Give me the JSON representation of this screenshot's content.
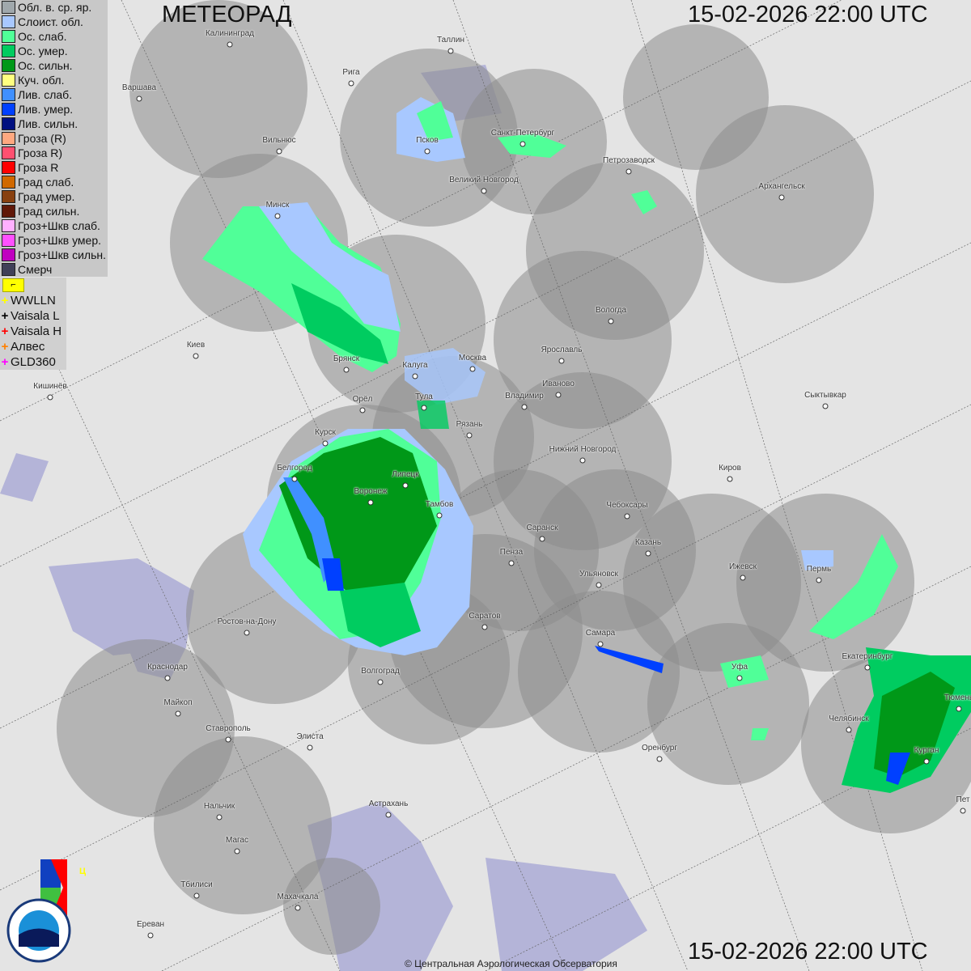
{
  "title": "МЕТЕОРАД",
  "timestamp": "15-02-2026  22:00 UTC",
  "copyright": "© Центральная Аэрологическая Обсерватория",
  "legend": [
    {
      "label": "Обл. в. ср. яр.",
      "color": "#a0a8ac"
    },
    {
      "label": "Слоист. обл.",
      "color": "#a8c8ff"
    },
    {
      "label": "Ос. слаб.",
      "color": "#50ff98"
    },
    {
      "label": "Ос. умер.",
      "color": "#00cc60"
    },
    {
      "label": "Ос. сильн.",
      "color": "#009818"
    },
    {
      "label": "Куч. обл.",
      "color": "#ffff80"
    },
    {
      "label": "Лив. слаб.",
      "color": "#4090ff"
    },
    {
      "label": "Лив. умер.",
      "color": "#0040ff"
    },
    {
      "label": "Лив. сильн.",
      "color": "#001080"
    },
    {
      "label": "Гроза (R)",
      "color": "#ffa880"
    },
    {
      "label": "Гроза R)",
      "color": "#ff5070"
    },
    {
      "label": "Гроза R",
      "color": "#ff0000"
    },
    {
      "label": "Град слаб.",
      "color": "#d06800"
    },
    {
      "label": "Град умер.",
      "color": "#884010"
    },
    {
      "label": "Град сильн.",
      "color": "#601808"
    },
    {
      "label": "Гроз+Шкв слаб.",
      "color": "#ffb0ff"
    },
    {
      "label": "Гроз+Шкв умер.",
      "color": "#ff50ff"
    },
    {
      "label": "Гроз+Шкв сильн.",
      "color": "#c000c0"
    },
    {
      "label": "Смерч",
      "color": "#404058"
    }
  ],
  "lightning_flag_icon": "flag-icon",
  "lightning": [
    {
      "label": "WWLLN",
      "color": "#ffff00"
    },
    {
      "label": "Vaisala L",
      "color": "#000000"
    },
    {
      "label": "Vaisala H",
      "color": "#ff0000"
    },
    {
      "label": "Алвес",
      "color": "#ff8000"
    },
    {
      "label": "GLD360",
      "color": "#ff00ff"
    }
  ],
  "logos": {
    "cao": "ЦАО 1941",
    "roshydromet": "РОСГИДРОМЕТ ROSHYDROMET"
  },
  "cities": [
    "Калининград",
    "Таллин",
    "Рига",
    "Варшава",
    "Псков",
    "Санкт-Петербург",
    "Петрозаводск",
    "Архангельск",
    "Вильнюс",
    "Великий Новгород",
    "Минск",
    "Вологда",
    "Ярославль",
    "Иваново",
    "Москва",
    "Калуга",
    "Брянск",
    "Киев",
    "Кишинёв",
    "Тула",
    "Владимир",
    "Орёл",
    "Рязань",
    "Сыктывкар",
    "Нижний Новгород",
    "Курск",
    "Киров",
    "Белгород",
    "Липецк",
    "Воронеж",
    "Тамбов",
    "Чебоксары",
    "Саранск",
    "Казань",
    "Пенза",
    "Ижевск",
    "Пермь",
    "Ульяновск",
    "Ростов-на-Дону",
    "Саратов",
    "Самара",
    "Уфа",
    "Екатеринбург",
    "Краснодар",
    "Волгоград",
    "Тюмень",
    "Майкоп",
    "Челябинск",
    "Ставрополь",
    "Элиста",
    "Оренбург",
    "Курган",
    "Нальчик",
    "Астрахань",
    "Магас",
    "Тбилиси",
    "Махачкала",
    "Ереван",
    "Пет"
  ]
}
